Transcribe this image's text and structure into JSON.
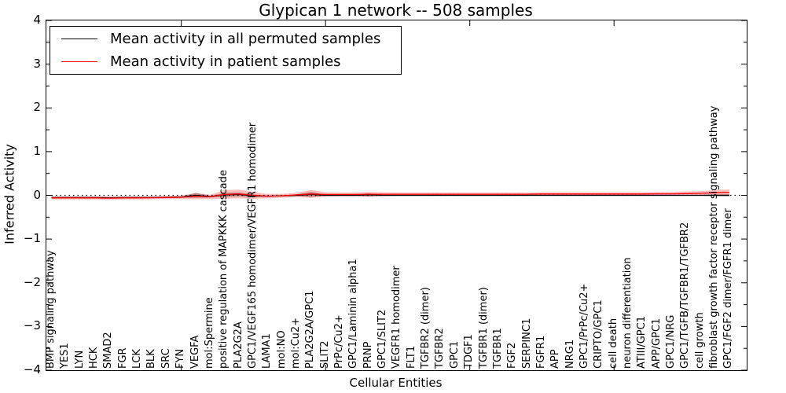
{
  "title": "Glypican 1 network -- 508 samples",
  "axes": {
    "y_label": "Inferred Activity",
    "x_label": "Cellular Entities",
    "y_ticks": [
      "4",
      "3",
      "2",
      "1",
      "0",
      "−1",
      "−2",
      "−3",
      "−4"
    ]
  },
  "legend": {
    "items": [
      {
        "label": "Mean activity in all permuted samples",
        "color": "#000000"
      },
      {
        "label": "Mean activity in patient samples",
        "color": "#ff0000"
      }
    ]
  },
  "colors": {
    "permuted_line": "#000000",
    "patient_line": "#ff0000",
    "band_fill": "#ff0000",
    "axis": "#000000"
  },
  "chart_data": {
    "type": "line",
    "title": "Glypican 1 network -- 508 samples",
    "xlabel": "Cellular Entities",
    "ylabel": "Inferred Activity",
    "ylim": [
      -4,
      4
    ],
    "y_major_ticks": [
      4,
      3,
      2,
      1,
      0,
      -1,
      -2,
      -3,
      -4
    ],
    "x_major_tick_positions": [
      10,
      20,
      30,
      40
    ],
    "zero_line": true,
    "grid": false,
    "legend_position": "upper left",
    "categories": [
      "BMP signaling pathway",
      "YES1",
      "LYN",
      "HCK",
      "SMAD2",
      "FGR",
      "LCK",
      "BLK",
      "SRC",
      "FYN",
      "VEGFA",
      "mol:Spermine",
      "positive regulation of MAPKKK cascade",
      "PLA2G2A",
      "GPC1/VEGF165 homodimer/VEGFR1 homodimer",
      "LAMA1",
      "mol:NO",
      "mol:Cu2+",
      "PLA2G2A/GPC1",
      "SLIT2",
      "PrPc/Cu2+",
      "GPC1/Laminin alpha1",
      "PRNP",
      "GPC1/SLIT2",
      "VEGFR1 homodimer",
      "FLT1",
      "TGFBR2 (dimer)",
      "TGFBR2",
      "GPC1",
      "TDGF1",
      "TGFBR1 (dimer)",
      "TGFBR1",
      "FGF2",
      "SERPINC1",
      "FGFR1",
      "APP",
      "NRG1",
      "GPC1/PrPc/Cu2+",
      "CRIPTO/GPC1",
      "cell death",
      "neuron differentiation",
      "ATIII/GPC1",
      "APP/GPC1",
      "GPC1/NRG",
      "GPC1/TGFB/TGFBR1/TGFBR2",
      "cell growth",
      "fibroblast growth factor receptor signaling pathway",
      "GPC1/FGF2 dimer/FGFR1 dimer"
    ],
    "series": [
      {
        "name": "Mean activity in all permuted samples",
        "color": "#000000",
        "values": [
          -0.05,
          -0.05,
          -0.05,
          -0.05,
          -0.055,
          -0.05,
          -0.05,
          -0.05,
          -0.045,
          -0.04,
          0.0,
          -0.03,
          0.01,
          0.02,
          -0.01,
          -0.02,
          -0.01,
          0.0,
          0.02,
          0.0,
          0.0,
          0.0,
          0.01,
          0.0,
          0.0,
          0.0,
          0.0,
          0.0,
          0.0,
          0.0,
          0.0,
          0.0,
          0.0,
          0.0,
          0.0,
          0.0,
          0.0,
          0.0,
          0.0,
          0.0,
          0.0,
          0.0,
          0.0,
          0.0,
          0.0,
          0.0,
          0.0,
          0.0
        ],
        "band_halfwidth": [
          0.012,
          0.012,
          0.012,
          0.012,
          0.015,
          0.012,
          0.012,
          0.012,
          0.012,
          0.012,
          0.06,
          0.02,
          0.045,
          0.045,
          0.03,
          0.015,
          0.012,
          0.02,
          0.06,
          0.015,
          0.012,
          0.012,
          0.04,
          0.015,
          0.01,
          0.01,
          0.01,
          0.01,
          0.01,
          0.01,
          0.01,
          0.01,
          0.01,
          0.01,
          0.01,
          0.01,
          0.01,
          0.01,
          0.01,
          0.01,
          0.01,
          0.01,
          0.01,
          0.01,
          0.01,
          0.01,
          0.02,
          0.025
        ],
        "band_opacity": 0.3
      },
      {
        "name": "Mean activity in patient samples",
        "color": "#ff0000",
        "values": [
          -0.06,
          -0.06,
          -0.06,
          -0.06,
          -0.065,
          -0.06,
          -0.06,
          -0.055,
          -0.05,
          -0.045,
          -0.02,
          -0.035,
          0.02,
          0.03,
          0.0,
          -0.02,
          -0.01,
          0.01,
          0.03,
          0.02,
          0.02,
          0.02,
          0.025,
          0.025,
          0.025,
          0.025,
          0.025,
          0.025,
          0.025,
          0.025,
          0.025,
          0.025,
          0.025,
          0.025,
          0.03,
          0.03,
          0.03,
          0.03,
          0.03,
          0.03,
          0.03,
          0.03,
          0.035,
          0.035,
          0.04,
          0.045,
          0.06,
          0.07
        ],
        "band_halfwidth": [
          0.035,
          0.035,
          0.035,
          0.035,
          0.04,
          0.035,
          0.035,
          0.035,
          0.035,
          0.04,
          0.07,
          0.05,
          0.1,
          0.1,
          0.08,
          0.05,
          0.045,
          0.05,
          0.09,
          0.05,
          0.045,
          0.045,
          0.055,
          0.045,
          0.04,
          0.04,
          0.04,
          0.04,
          0.04,
          0.04,
          0.04,
          0.04,
          0.04,
          0.04,
          0.04,
          0.04,
          0.04,
          0.04,
          0.04,
          0.04,
          0.04,
          0.04,
          0.045,
          0.045,
          0.05,
          0.05,
          0.06,
          0.065
        ],
        "band_opacity": 0.25
      }
    ]
  }
}
